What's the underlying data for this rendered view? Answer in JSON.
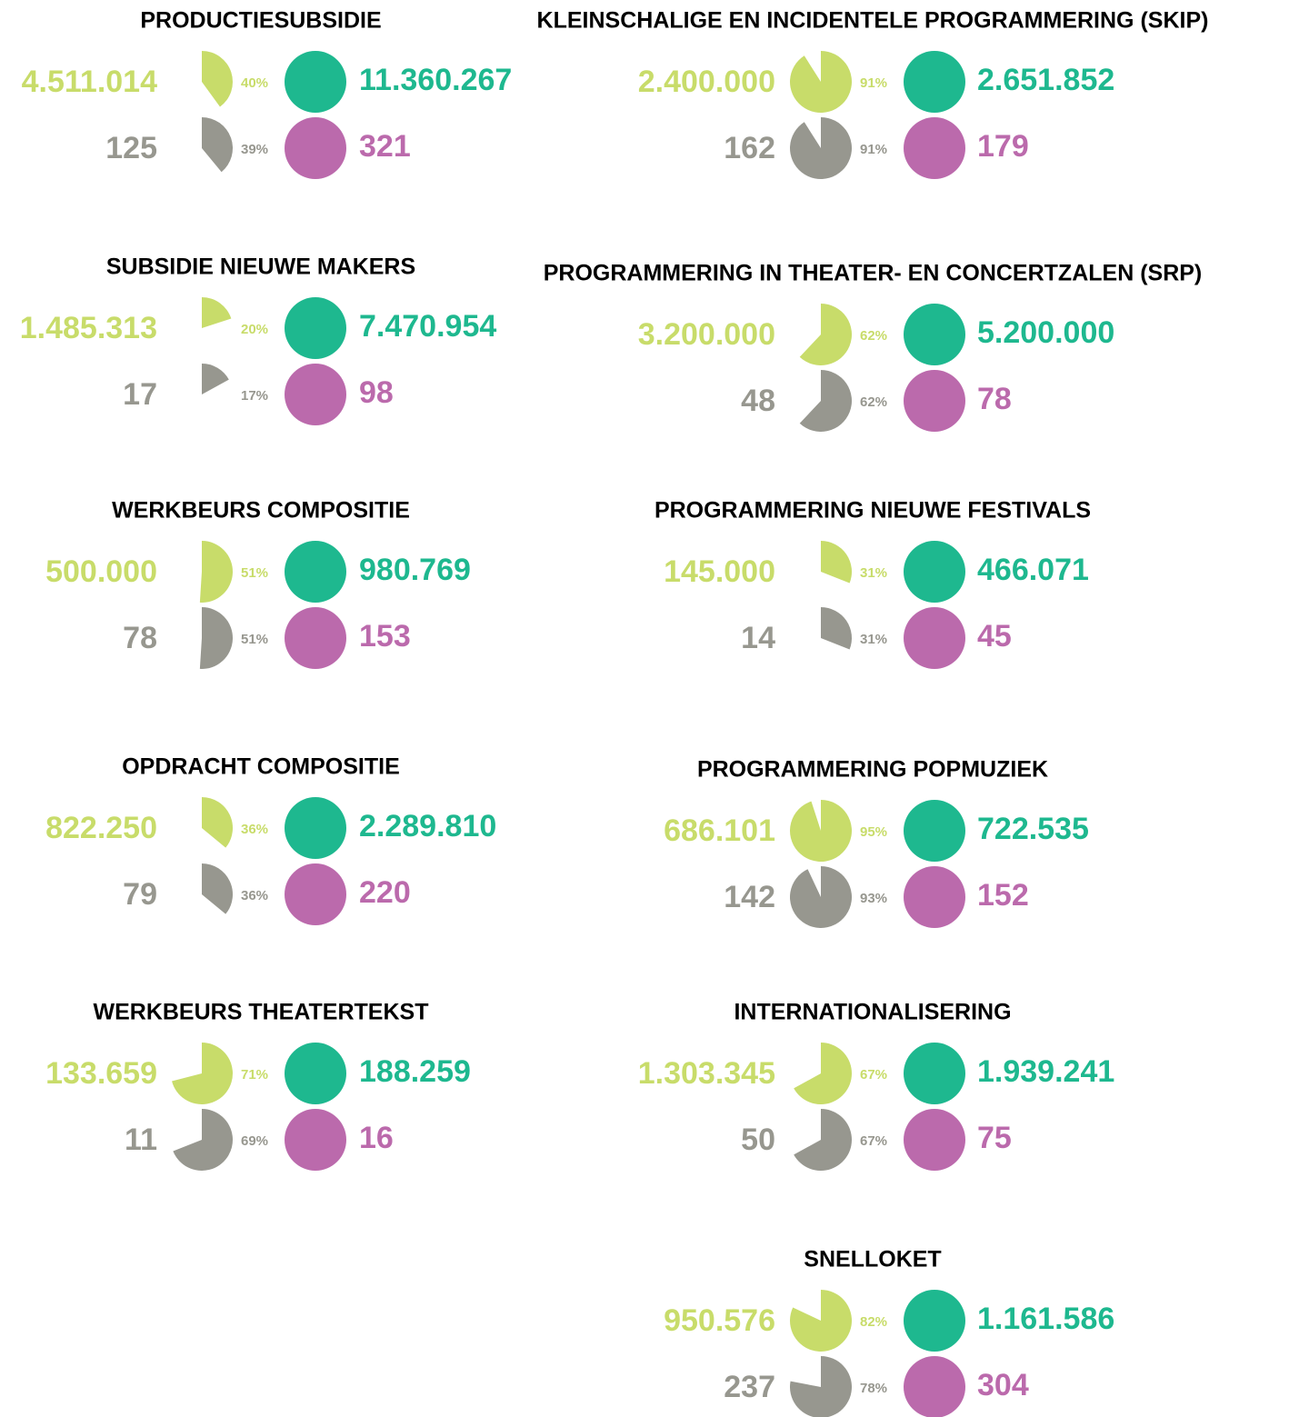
{
  "colors": [
    [
      "#c8dc6a",
      "#1eb88f"
    ],
    [
      "#97978f",
      "#bb6aac"
    ]
  ],
  "chart_data": [
    {
      "type": "pie",
      "title": "PRODUCTIESUBSIDIE",
      "rows": [
        {
          "granted": "4.511.014",
          "percent": 40,
          "percent_label": "40%",
          "requested": "11.360.267"
        },
        {
          "granted": 125,
          "percent": 39,
          "percent_label": "39%",
          "requested": 321
        }
      ]
    },
    {
      "type": "pie",
      "title": "SUBSIDIE NIEUWE MAKERS",
      "rows": [
        {
          "granted": "1.485.313",
          "percent": 20,
          "percent_label": "20%",
          "requested": "7.470.954"
        },
        {
          "granted": 17,
          "percent": 17,
          "percent_label": "17%",
          "requested": 98
        }
      ]
    },
    {
      "type": "pie",
      "title": "WERKBEURS COMPOSITIE",
      "rows": [
        {
          "granted": "500.000",
          "percent": 51,
          "percent_label": "51%",
          "requested": "980.769"
        },
        {
          "granted": 78,
          "percent": 51,
          "percent_label": "51%",
          "requested": 153
        }
      ]
    },
    {
      "type": "pie",
      "title": "OPDRACHT COMPOSITIE",
      "rows": [
        {
          "granted": "822.250",
          "percent": 36,
          "percent_label": "36%",
          "requested": "2.289.810"
        },
        {
          "granted": 79,
          "percent": 36,
          "percent_label": "36%",
          "requested": 220
        }
      ]
    },
    {
      "type": "pie",
      "title": "WERKBEURS THEATERTEKST",
      "rows": [
        {
          "granted": "133.659",
          "percent": 71,
          "percent_label": "71%",
          "requested": "188.259"
        },
        {
          "granted": 11,
          "percent": 69,
          "percent_label": "69%",
          "requested": 16
        }
      ]
    },
    {
      "type": "pie",
      "title": "KLEINSCHALIGE EN INCIDENTELE PROGRAMMERING (SKIP)",
      "rows": [
        {
          "granted": "2.400.000",
          "percent": 91,
          "percent_label": "91%",
          "requested": "2.651.852"
        },
        {
          "granted": 162,
          "percent": 91,
          "percent_label": "91%",
          "requested": 179
        }
      ]
    },
    {
      "type": "pie",
      "title": "PROGRAMMERING IN THEATER- EN CONCERTZALEN (SRP)",
      "rows": [
        {
          "granted": "3.200.000",
          "percent": 62,
          "percent_label": "62%",
          "requested": "5.200.000"
        },
        {
          "granted": 48,
          "percent": 62,
          "percent_label": "62%",
          "requested": 78
        }
      ]
    },
    {
      "type": "pie",
      "title": "PROGRAMMERING NIEUWE FESTIVALS",
      "rows": [
        {
          "granted": "145.000",
          "percent": 31,
          "percent_label": "31%",
          "requested": "466.071"
        },
        {
          "granted": 14,
          "percent": 31,
          "percent_label": "31%",
          "requested": 45
        }
      ]
    },
    {
      "type": "pie",
      "title": "PROGRAMMERING POPMUZIEK",
      "rows": [
        {
          "granted": "686.101",
          "percent": 95,
          "percent_label": "95%",
          "requested": "722.535"
        },
        {
          "granted": 142,
          "percent": 93,
          "percent_label": "93%",
          "requested": 152
        }
      ]
    },
    {
      "type": "pie",
      "title": "INTERNATIONALISERING",
      "rows": [
        {
          "granted": "1.303.345",
          "percent": 67,
          "percent_label": "67%",
          "requested": "1.939.241"
        },
        {
          "granted": 50,
          "percent": 67,
          "percent_label": "67%",
          "requested": 75
        }
      ]
    },
    {
      "type": "pie",
      "title": "SNELLOKET",
      "rows": [
        {
          "granted": "950.576",
          "percent": 82,
          "percent_label": "82%",
          "requested": "1.161.586"
        },
        {
          "granted": 237,
          "percent": 78,
          "percent_label": "78%",
          "requested": 304
        }
      ]
    }
  ]
}
